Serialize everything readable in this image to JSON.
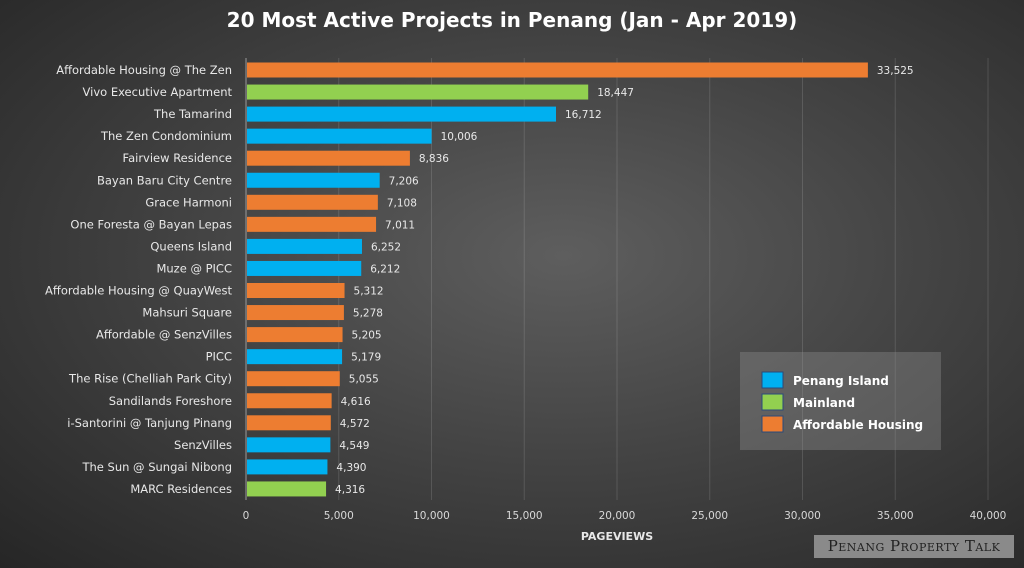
{
  "chart_data": {
    "type": "bar",
    "orientation": "horizontal",
    "title": "20 Most Active Projects in Penang (Jan - Apr 2019)",
    "xlabel": "PAGEVIEWS",
    "ylabel": "",
    "xlim": [
      0,
      40000
    ],
    "xticks": [
      "0",
      "5,000",
      "10,000",
      "15,000",
      "20,000",
      "25,000",
      "30,000",
      "35,000",
      "40,000"
    ],
    "grid": "vertical",
    "legend_position": "bottom-right",
    "categories": [
      "Affordable Housing @ The Zen",
      "Vivo Executive Apartment",
      "The Tamarind",
      "The Zen Condominium",
      "Fairview Residence",
      "Bayan Baru City Centre",
      "Grace Harmoni",
      "One Foresta @ Bayan Lepas",
      "Queens Island",
      "Muze @ PICC",
      "Affordable Housing @ QuayWest",
      "Mahsuri Square",
      "Affordable @ SenzVilles",
      "PICC",
      "The Rise (Chelliah Park City)",
      "Sandilands Foreshore",
      "i-Santorini @ Tanjung Pinang",
      "SenzVilles",
      "The Sun @ Sungai Nibong",
      "MARC Residences"
    ],
    "values": [
      33525,
      18447,
      16712,
      10006,
      8836,
      7206,
      7108,
      7011,
      6252,
      6212,
      5312,
      5278,
      5205,
      5179,
      5055,
      4616,
      4572,
      4549,
      4390,
      4316
    ],
    "value_labels": [
      "33,525",
      "18,447",
      "16,712",
      "10,006",
      "8,836",
      "7,206",
      "7,108",
      "7,011",
      "6,252",
      "6,212",
      "5,312",
      "5,278",
      "5,205",
      "5,179",
      "5,055",
      "4,616",
      "4,572",
      "4,549",
      "4,390",
      "4,316"
    ],
    "groups": [
      "Affordable Housing",
      "Mainland",
      "Penang Island",
      "Penang Island",
      "Affordable Housing",
      "Penang Island",
      "Affordable Housing",
      "Affordable Housing",
      "Penang Island",
      "Penang Island",
      "Affordable Housing",
      "Affordable Housing",
      "Affordable Housing",
      "Penang Island",
      "Affordable Housing",
      "Affordable Housing",
      "Affordable Housing",
      "Penang Island",
      "Penang Island",
      "Mainland"
    ],
    "legend": [
      {
        "name": "Penang Island",
        "color": "#00b0f0"
      },
      {
        "name": "Mainland",
        "color": "#92d050"
      },
      {
        "name": "Affordable Housing",
        "color": "#ed7d31"
      }
    ]
  },
  "watermark": "Penang Property Talk"
}
